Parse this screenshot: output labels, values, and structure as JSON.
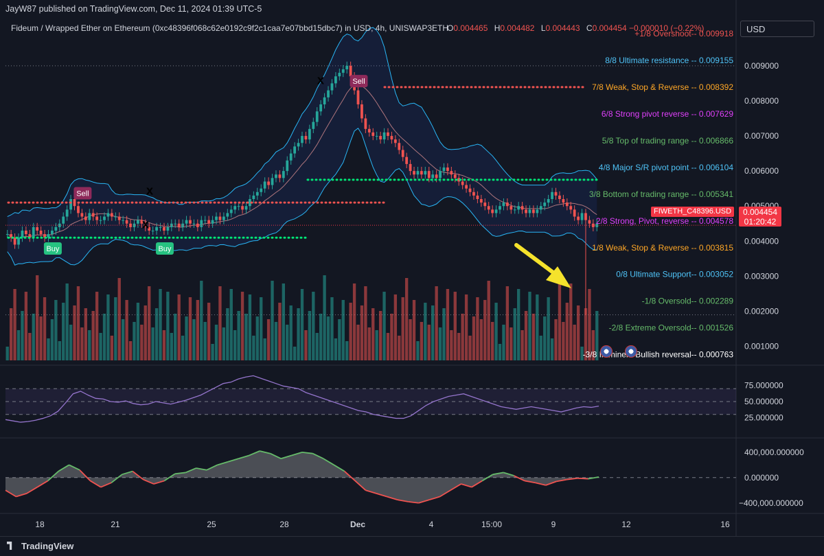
{
  "header": {
    "credit": "JayW87 published on TradingView.com, Dec 11, 2024 01:39 UTC-5",
    "symbol_line": "Fideum / Wrapped Ether on Ethereum (0xc48396f068c62e0192c9f2c1caa7e07bbd15dbc7) in USD, 4h, UNISWAP3ETH",
    "ohlc": {
      "o_label": "O",
      "o": "0.004465",
      "h_label": "H",
      "h": "0.004482",
      "l_label": "L",
      "l": "0.004443",
      "c_label": "C",
      "c": "0.004454 −0.000010 (−0.22%)"
    }
  },
  "currency_button": "USD",
  "price_tag": {
    "symbol": "FIWETH_C48396.USD",
    "price": "0.004454",
    "countdown": "01:20:42"
  },
  "footer": {
    "brand": "TradingView"
  },
  "colors": {
    "background": "#131722",
    "up": "#26a69a",
    "down": "#ef5350",
    "buy": "#26c281",
    "sell": "#8e2a5a",
    "rsi": "#9575cd",
    "arrow": "#f5e22c"
  },
  "icons": [
    "us-flag-icon",
    "us-flag-icon"
  ],
  "chart_data": [
    {
      "type": "candlestick",
      "title": "",
      "x_ticks": [
        "18",
        "21",
        "25",
        "28",
        "Dec",
        "4",
        "15:00",
        "9",
        "12",
        "16"
      ],
      "y_ticks": [
        "0.009000",
        "0.008000",
        "0.007000",
        "0.006000",
        "0.005000",
        "0.004000",
        "0.003000",
        "0.002000",
        "0.001000"
      ],
      "ylim": [
        0.0006,
        0.0098
      ],
      "close_series": [
        0.0042,
        0.0041,
        0.0039,
        0.0041,
        0.0043,
        0.0042,
        0.0041,
        0.0044,
        0.0043,
        0.0042,
        0.0041,
        0.0042,
        0.0043,
        0.0044,
        0.0045,
        0.0047,
        0.0049,
        0.0052,
        0.005,
        0.0048,
        0.0047,
        0.0046,
        0.0048,
        0.0047,
        0.0046,
        0.0046,
        0.0047,
        0.0048,
        0.0047,
        0.0047,
        0.0046,
        0.0046,
        0.0045,
        0.0044,
        0.0045,
        0.0046,
        0.0045,
        0.0044,
        0.0043,
        0.0043,
        0.0044,
        0.0044,
        0.0043,
        0.0044,
        0.0045,
        0.0045,
        0.0044,
        0.0045,
        0.0046,
        0.0045,
        0.0045,
        0.0044,
        0.0046,
        0.0046,
        0.0045,
        0.0046,
        0.0047,
        0.0046,
        0.0047,
        0.0048,
        0.0049,
        0.005,
        0.005,
        0.0049,
        0.005,
        0.0052,
        0.0053,
        0.0054,
        0.0055,
        0.0057,
        0.0056,
        0.0058,
        0.0059,
        0.0058,
        0.006,
        0.0063,
        0.0065,
        0.0067,
        0.0068,
        0.007,
        0.0069,
        0.0072,
        0.0074,
        0.0077,
        0.0079,
        0.0081,
        0.0083,
        0.0085,
        0.0087,
        0.0088,
        0.0089,
        0.009,
        0.0087,
        0.0083,
        0.0079,
        0.0075,
        0.0072,
        0.0071,
        0.007,
        0.007,
        0.0069,
        0.0071,
        0.007,
        0.0069,
        0.0068,
        0.0066,
        0.0064,
        0.0062,
        0.006,
        0.0059,
        0.006,
        0.0059,
        0.006,
        0.0058,
        0.0059,
        0.0058,
        0.006,
        0.0061,
        0.006,
        0.0059,
        0.0058,
        0.0057,
        0.0056,
        0.0055,
        0.0054,
        0.0053,
        0.0052,
        0.0051,
        0.005,
        0.0049,
        0.0048,
        0.0049,
        0.005,
        0.0051,
        0.005,
        0.0049,
        0.0049,
        0.005,
        0.0049,
        0.0048,
        0.0049,
        0.0048,
        0.0049,
        0.005,
        0.0051,
        0.0052,
        0.0054,
        0.0053,
        0.0052,
        0.0051,
        0.005,
        0.0049,
        0.0047,
        0.0046,
        0.0048,
        0.0046,
        0.0045,
        0.0044,
        0.0045
      ],
      "levels": [
        {
          "label": "+1/8 Overshoot-- 0.009918",
          "value": 0.009918,
          "color": "#ef5350"
        },
        {
          "label": "8/8 Ultimate resistance -- 0.009155",
          "value": 0.009155,
          "color": "#4fc3f7"
        },
        {
          "label": "7/8 Weak, Stop & Reverse -- 0.008392",
          "value": 0.008392,
          "color": "#ffa726"
        },
        {
          "label": "6/8 Strong pivot reverse -- 0.007629",
          "value": 0.007629,
          "color": "#e040fb"
        },
        {
          "label": "5/8 Top of trading range -- 0.006866",
          "value": 0.006866,
          "color": "#66bb6a"
        },
        {
          "label": "4/8 Major S/R pivot point -- 0.006104",
          "value": 0.006104,
          "color": "#4fc3f7"
        },
        {
          "label": "3/8 Bottom of trading range -- 0.005341",
          "value": 0.005341,
          "color": "#66bb6a"
        },
        {
          "label": "2/8 Strong, Pivot, reverse -- 0.004578",
          "value": 0.004578,
          "color": "#e040fb"
        },
        {
          "label": "1/8 Weak, Stop & Reverse -- 0.003815",
          "value": 0.003815,
          "color": "#ffa726"
        },
        {
          "label": "0/8 Ultimate Support-- 0.003052",
          "value": 0.003052,
          "color": "#4fc3f7"
        },
        {
          "label": "-1/8 Oversold-- 0.002289",
          "value": 0.002289,
          "color": "#66bb6a"
        },
        {
          "label": "-2/8 Extreme Oversold-- 0.001526",
          "value": 0.001526,
          "color": "#66bb6a"
        },
        {
          "label": "-3/8 Imminent Bullish reversal-- 0.000763",
          "value": 0.000763,
          "color": "#ffffff"
        }
      ],
      "signals": [
        {
          "label": "Sell",
          "index": 20,
          "type": "sell"
        },
        {
          "label": "Buy",
          "index": 12,
          "type": "buy"
        },
        {
          "label": "Buy",
          "index": 42,
          "type": "buy"
        },
        {
          "label": "Sell",
          "index": 94,
          "type": "sell"
        }
      ],
      "markers": [
        "X",
        "X",
        "X"
      ]
    },
    {
      "type": "line",
      "title": "",
      "y_ticks": [
        "75.000000",
        "50.000000",
        "25.000000"
      ],
      "ylim": [
        0,
        100
      ],
      "band": [
        30,
        70
      ],
      "values": [
        22,
        20,
        18,
        19,
        21,
        24,
        28,
        35,
        48,
        62,
        66,
        60,
        55,
        54,
        50,
        49,
        51,
        47,
        45,
        46,
        50,
        48,
        46,
        49,
        52,
        56,
        60,
        66,
        72,
        78,
        80,
        85,
        88,
        90,
        86,
        82,
        78,
        74,
        72,
        70,
        64,
        60,
        56,
        52,
        48,
        44,
        40,
        36,
        34,
        30,
        28,
        26,
        24,
        24,
        28,
        36,
        44,
        50,
        54,
        58,
        60,
        62,
        58,
        54,
        50,
        46,
        42,
        40,
        38,
        40,
        42,
        40,
        38,
        36,
        34,
        37,
        40,
        42,
        41,
        43
      ]
    },
    {
      "type": "area",
      "title": "",
      "y_ticks": [
        "400,000.000000",
        "0.000000",
        "−400,000.000000"
      ],
      "ylim": [
        -500000,
        550000
      ],
      "values": [
        -200000,
        -300000,
        -250000,
        -150000,
        -50000,
        100000,
        200000,
        120000,
        -50000,
        -150000,
        -80000,
        50000,
        100000,
        -30000,
        -100000,
        -50000,
        60000,
        80000,
        150000,
        120000,
        200000,
        250000,
        300000,
        350000,
        420000,
        380000,
        300000,
        350000,
        400000,
        380000,
        300000,
        200000,
        100000,
        -50000,
        -200000,
        -250000,
        -300000,
        -350000,
        -380000,
        -400000,
        -350000,
        -300000,
        -200000,
        -100000,
        -150000,
        -50000,
        50000,
        80000,
        30000,
        -50000,
        -80000,
        -120000,
        -60000,
        -30000,
        -10000,
        -20000,
        10000
      ]
    }
  ]
}
